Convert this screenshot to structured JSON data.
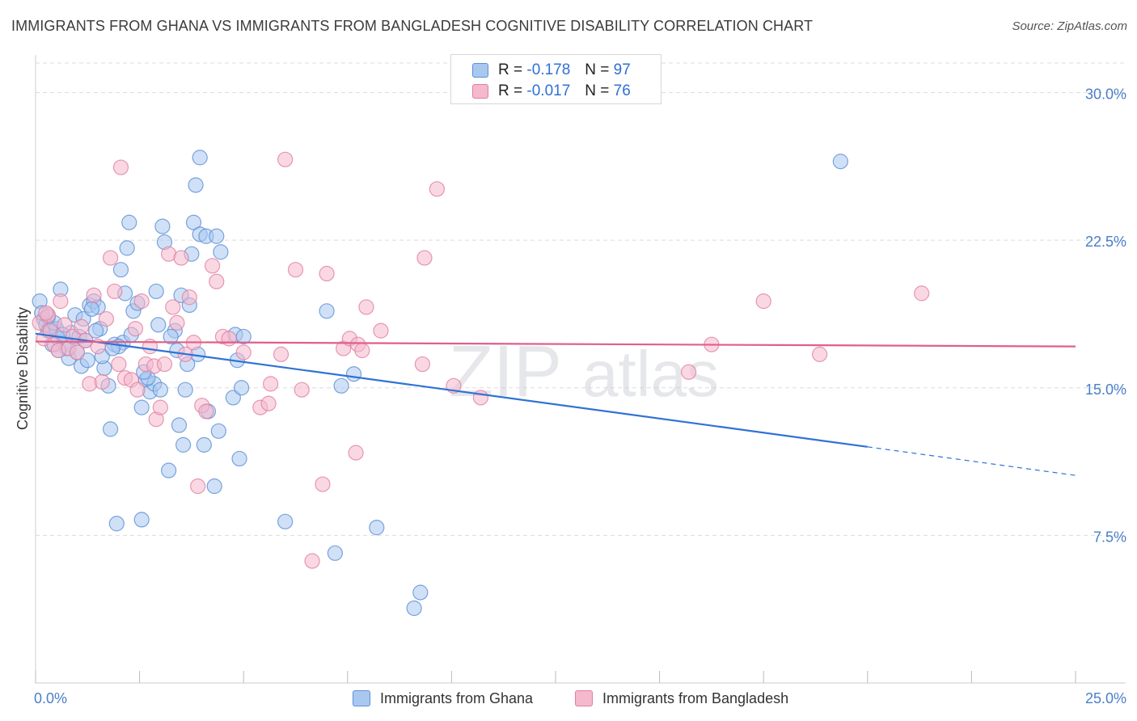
{
  "header": {
    "title": "IMMIGRANTS FROM GHANA VS IMMIGRANTS FROM BANGLADESH COGNITIVE DISABILITY CORRELATION CHART",
    "source": "Source: ZipAtlas.com"
  },
  "legend": {
    "series": [
      {
        "r_label": "R =",
        "r_value": "-0.178",
        "n_label": "N =",
        "n_value": "97"
      },
      {
        "r_label": "R =",
        "r_value": "-0.017",
        "n_label": "N =",
        "n_value": "76"
      }
    ]
  },
  "watermark": {
    "zip": "ZIP",
    "atlas": "atlas"
  },
  "colors": {
    "ghana_fill": "#a9c8f0",
    "ghana_stroke": "#5b8fd6",
    "ghana_line": "#2f72d6",
    "bangladesh_fill": "#f5b8cc",
    "bangladesh_stroke": "#e07fa0",
    "bangladesh_line": "#e05f8a",
    "grid": "#dcdcdc",
    "tick_label": "#4a7ec9"
  },
  "chart_data": {
    "type": "scatter",
    "title": "IMMIGRANTS FROM GHANA VS IMMIGRANTS FROM BANGLADESH COGNITIVE DISABILITY CORRELATION CHART",
    "xlabel": "",
    "ylabel": "Cognitive Disability",
    "xlim": [
      0,
      25
    ],
    "ylim": [
      0,
      31.5
    ],
    "x_tick_labels": [
      {
        "value": 0,
        "label": "0.0%"
      },
      {
        "value": 25,
        "label": "25.0%"
      }
    ],
    "y_ticks": [
      {
        "value": 7.5,
        "label": "7.5%"
      },
      {
        "value": 15,
        "label": "15.0%"
      },
      {
        "value": 22.5,
        "label": "22.5%"
      },
      {
        "value": 30,
        "label": "30.0%"
      }
    ],
    "grid": "horizontal dashed",
    "legend_placement": "top-center and bottom",
    "series": [
      {
        "name": "Immigrants from Ghana",
        "r": -0.178,
        "n": 97,
        "trend": {
          "x0": 0,
          "y0": 17.75,
          "x1": 20,
          "y1": 12.0,
          "dash_to_x": 25,
          "dash_to_y": 10.55
        },
        "points": [
          [
            0.1,
            19.4
          ],
          [
            0.2,
            18.5
          ],
          [
            0.25,
            18.2
          ],
          [
            0.3,
            17.9
          ],
          [
            0.35,
            18.0
          ],
          [
            0.4,
            17.2
          ],
          [
            0.5,
            18.0
          ],
          [
            0.55,
            17.5
          ],
          [
            0.6,
            20.0
          ],
          [
            0.7,
            17.3
          ],
          [
            0.8,
            16.5
          ],
          [
            0.85,
            17.8
          ],
          [
            0.95,
            18.7
          ],
          [
            1.0,
            16.8
          ],
          [
            1.05,
            17.6
          ],
          [
            1.1,
            16.1
          ],
          [
            1.15,
            18.5
          ],
          [
            1.25,
            16.4
          ],
          [
            1.3,
            19.2
          ],
          [
            1.4,
            19.4
          ],
          [
            1.5,
            19.1
          ],
          [
            1.55,
            18.0
          ],
          [
            1.65,
            16.0
          ],
          [
            1.75,
            15.1
          ],
          [
            1.8,
            12.9
          ],
          [
            1.9,
            17.2
          ],
          [
            1.95,
            8.1
          ],
          [
            2.05,
            21.0
          ],
          [
            2.1,
            17.3
          ],
          [
            2.15,
            19.8
          ],
          [
            2.2,
            22.1
          ],
          [
            2.25,
            23.4
          ],
          [
            2.3,
            17.7
          ],
          [
            2.35,
            18.9
          ],
          [
            2.45,
            19.3
          ],
          [
            2.55,
            8.3
          ],
          [
            2.55,
            14.0
          ],
          [
            2.65,
            15.4
          ],
          [
            2.75,
            14.8
          ],
          [
            2.85,
            15.2
          ],
          [
            2.9,
            19.9
          ],
          [
            2.95,
            18.2
          ],
          [
            3.0,
            14.9
          ],
          [
            3.05,
            23.2
          ],
          [
            3.1,
            22.4
          ],
          [
            3.2,
            10.8
          ],
          [
            3.35,
            17.9
          ],
          [
            3.4,
            16.9
          ],
          [
            3.45,
            13.1
          ],
          [
            3.5,
            19.7
          ],
          [
            3.55,
            12.1
          ],
          [
            3.6,
            14.9
          ],
          [
            3.7,
            19.2
          ],
          [
            3.75,
            21.8
          ],
          [
            3.8,
            23.4
          ],
          [
            3.85,
            25.3
          ],
          [
            3.9,
            16.7
          ],
          [
            3.95,
            22.8
          ],
          [
            3.95,
            26.7
          ],
          [
            4.05,
            12.1
          ],
          [
            4.1,
            22.7
          ],
          [
            4.15,
            13.8
          ],
          [
            4.3,
            10.0
          ],
          [
            4.35,
            22.7
          ],
          [
            4.4,
            12.8
          ],
          [
            4.45,
            21.9
          ],
          [
            4.75,
            14.5
          ],
          [
            4.8,
            17.7
          ],
          [
            4.85,
            16.4
          ],
          [
            4.9,
            11.4
          ],
          [
            4.95,
            15.0
          ],
          [
            5.0,
            17.6
          ],
          [
            6.0,
            8.2
          ],
          [
            7.0,
            18.9
          ],
          [
            7.2,
            6.6
          ],
          [
            7.35,
            15.1
          ],
          [
            7.65,
            15.7
          ],
          [
            8.2,
            7.9
          ],
          [
            9.1,
            3.8
          ],
          [
            9.25,
            4.6
          ],
          [
            19.35,
            26.5
          ],
          [
            0.15,
            18.8
          ],
          [
            0.45,
            18.3
          ],
          [
            0.75,
            17.0
          ],
          [
            1.2,
            17.4
          ],
          [
            1.35,
            19.0
          ],
          [
            1.6,
            16.6
          ],
          [
            2.0,
            17.1
          ],
          [
            2.7,
            15.5
          ],
          [
            3.25,
            17.6
          ],
          [
            0.3,
            18.6
          ],
          [
            0.65,
            17.7
          ],
          [
            1.45,
            17.9
          ],
          [
            2.6,
            15.8
          ],
          [
            3.65,
            16.2
          ],
          [
            0.55,
            16.9
          ],
          [
            1.85,
            17.0
          ]
        ]
      },
      {
        "name": "Immigrants from Bangladesh",
        "r": -0.017,
        "n": 76,
        "trend": {
          "x0": 0,
          "y0": 17.35,
          "x1": 25,
          "y1": 17.1
        },
        "points": [
          [
            0.1,
            18.3
          ],
          [
            0.2,
            17.5
          ],
          [
            0.3,
            18.7
          ],
          [
            0.35,
            17.9
          ],
          [
            0.45,
            17.2
          ],
          [
            0.55,
            16.9
          ],
          [
            0.6,
            19.4
          ],
          [
            0.7,
            18.2
          ],
          [
            0.8,
            17.0
          ],
          [
            0.9,
            17.6
          ],
          [
            1.0,
            16.8
          ],
          [
            1.1,
            18.1
          ],
          [
            1.2,
            17.4
          ],
          [
            1.3,
            15.2
          ],
          [
            1.4,
            19.7
          ],
          [
            1.5,
            17.1
          ],
          [
            1.6,
            15.3
          ],
          [
            1.7,
            18.5
          ],
          [
            1.8,
            21.6
          ],
          [
            1.9,
            19.9
          ],
          [
            2.0,
            16.2
          ],
          [
            2.05,
            26.2
          ],
          [
            2.15,
            15.5
          ],
          [
            2.3,
            15.4
          ],
          [
            2.4,
            18.0
          ],
          [
            2.45,
            14.9
          ],
          [
            2.55,
            19.4
          ],
          [
            2.65,
            16.2
          ],
          [
            2.75,
            17.1
          ],
          [
            2.85,
            16.1
          ],
          [
            2.9,
            13.4
          ],
          [
            3.0,
            14.0
          ],
          [
            3.1,
            16.2
          ],
          [
            3.2,
            21.8
          ],
          [
            3.3,
            19.1
          ],
          [
            3.4,
            18.3
          ],
          [
            3.5,
            21.6
          ],
          [
            3.6,
            16.7
          ],
          [
            3.7,
            19.6
          ],
          [
            3.8,
            17.3
          ],
          [
            3.9,
            10.0
          ],
          [
            4.0,
            14.1
          ],
          [
            4.1,
            13.8
          ],
          [
            4.25,
            21.2
          ],
          [
            4.35,
            20.4
          ],
          [
            4.5,
            17.6
          ],
          [
            4.65,
            17.5
          ],
          [
            5.0,
            16.8
          ],
          [
            5.4,
            14.0
          ],
          [
            5.6,
            14.2
          ],
          [
            5.65,
            15.2
          ],
          [
            5.9,
            16.7
          ],
          [
            6.0,
            26.6
          ],
          [
            6.25,
            21.0
          ],
          [
            6.4,
            14.9
          ],
          [
            6.65,
            6.2
          ],
          [
            6.9,
            10.1
          ],
          [
            7.0,
            20.8
          ],
          [
            7.4,
            17.0
          ],
          [
            7.55,
            17.5
          ],
          [
            7.7,
            11.7
          ],
          [
            7.75,
            17.2
          ],
          [
            7.85,
            16.9
          ],
          [
            7.95,
            19.1
          ],
          [
            8.3,
            17.9
          ],
          [
            9.3,
            16.2
          ],
          [
            9.35,
            21.6
          ],
          [
            9.65,
            25.1
          ],
          [
            10.05,
            15.1
          ],
          [
            10.7,
            14.5
          ],
          [
            15.7,
            15.8
          ],
          [
            16.25,
            17.2
          ],
          [
            17.5,
            19.4
          ],
          [
            18.85,
            16.7
          ],
          [
            21.3,
            19.8
          ],
          [
            0.25,
            18.8
          ]
        ]
      }
    ]
  },
  "bottom_legend": {
    "items": [
      {
        "label": "Immigrants from Ghana"
      },
      {
        "label": "Immigrants from Bangladesh"
      }
    ]
  }
}
